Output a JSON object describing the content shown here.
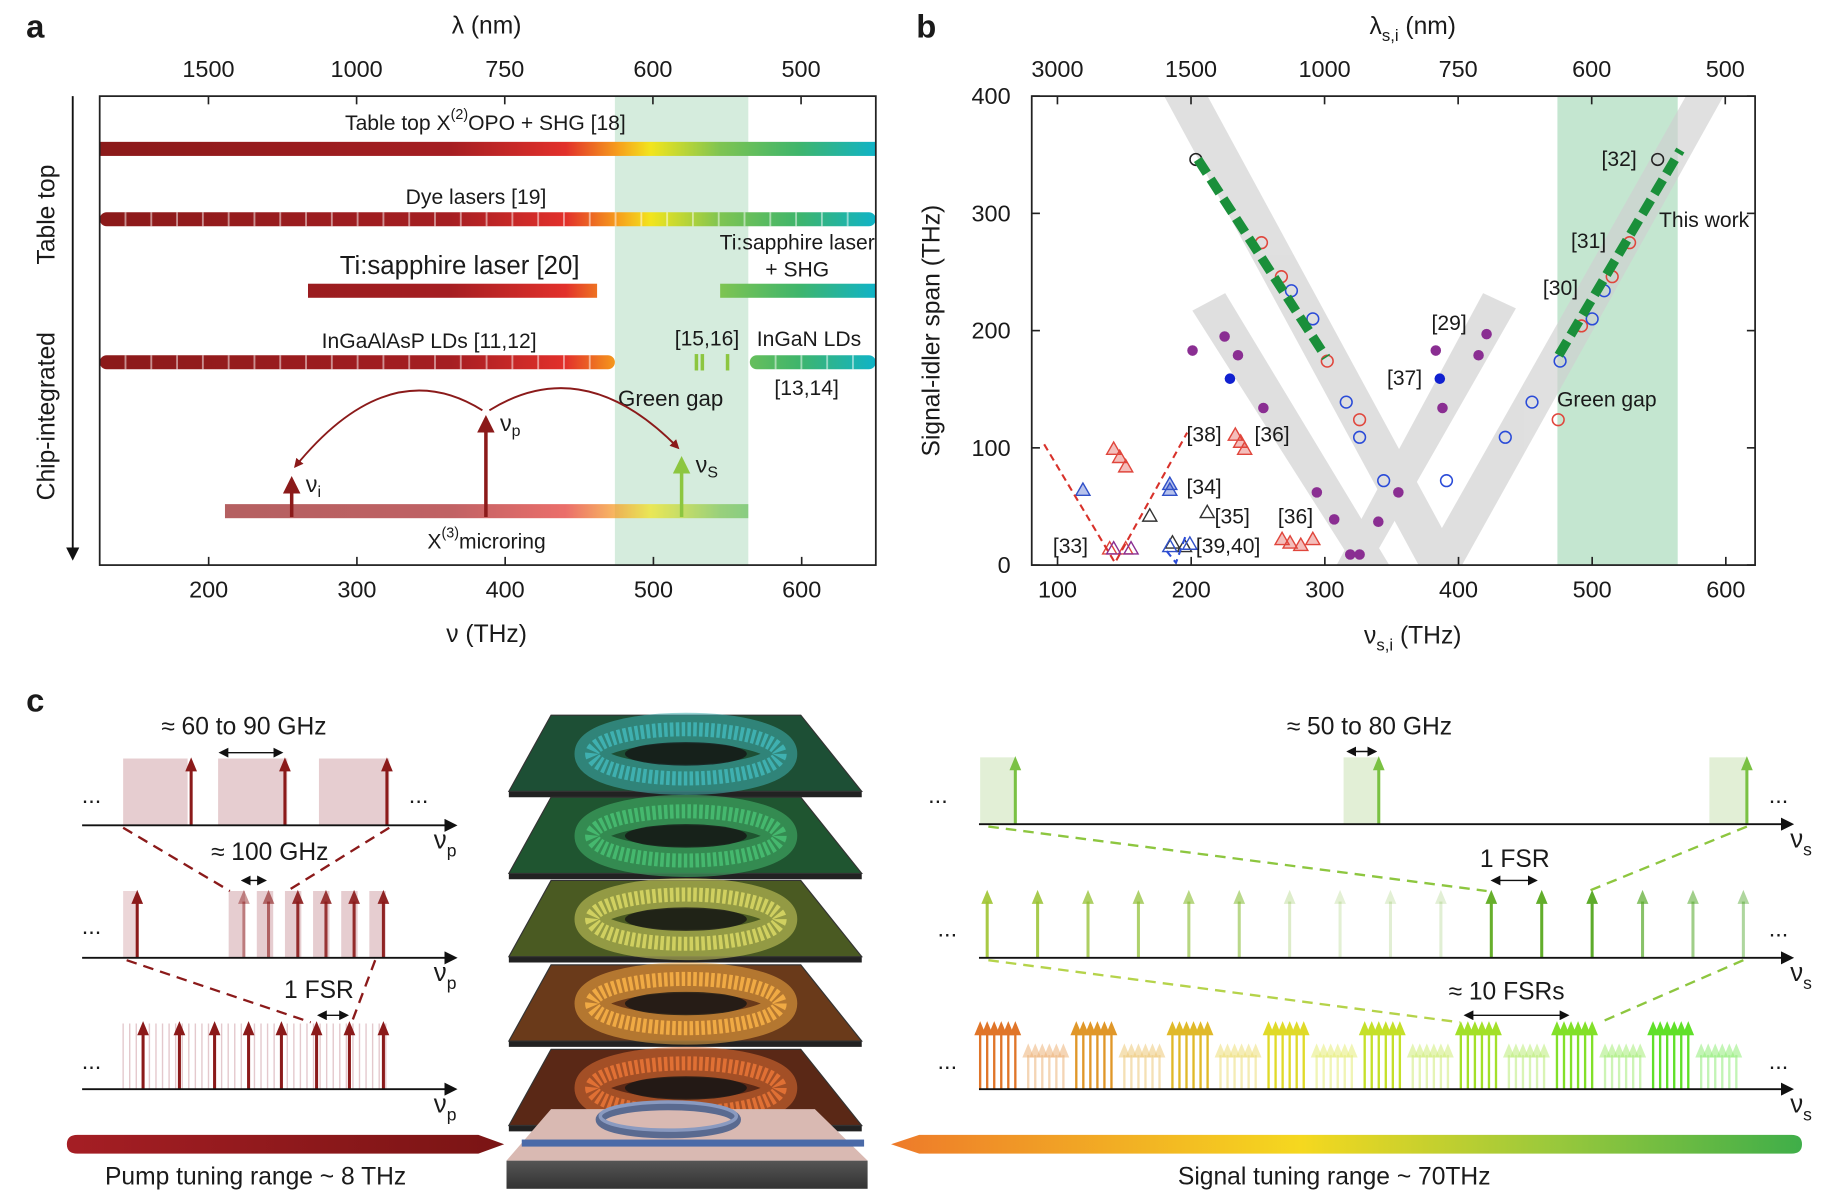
{
  "panel_labels": [
    "a",
    "b",
    "c"
  ],
  "chart_data": [
    {
      "type": "range",
      "top_axis_label": "λ (nm)",
      "xlabel": "ν (THz)",
      "xlim": [
        126.5,
        650
      ],
      "xticks": [
        200,
        300,
        400,
        500,
        600
      ],
      "top_xticks": [
        1500,
        1000,
        750,
        600,
        500
      ],
      "side_labels": [
        "Table top",
        "Chip-integrated"
      ],
      "band": {
        "range": [
          474,
          564
        ],
        "label": "Green gap",
        "color": "#d5ecdd"
      },
      "bars": [
        {
          "range": [
            126.5,
            650
          ],
          "style": "solid",
          "lines": [
            [
              {
                "t": "Table top X"
              },
              {
                "t": "(2)",
                "sup": true
              },
              {
                "t": "OPO + SHG [18]"
              }
            ]
          ]
        },
        {
          "range": [
            126.5,
            650
          ],
          "style": "segmented",
          "lines": [
            [
              {
                "t": "Dye lasers [19]"
              }
            ]
          ]
        },
        {
          "range": [
            267,
            462
          ],
          "style": "solid",
          "lines": [
            [
              {
                "t": "Ti:sapphire laser [20]"
              }
            ]
          ]
        },
        {
          "range": [
            545,
            650
          ],
          "style": "solid",
          "lines": [
            [
              {
                "t": "Ti:sapphire laser"
              }
            ],
            [
              {
                "t": "+ SHG"
              }
            ]
          ]
        },
        {
          "range": [
            126.5,
            474
          ],
          "style": "segmented",
          "lines": [
            [
              {
                "t": "InGaAlAsP LDs [11,12]"
              }
            ]
          ]
        },
        {
          "range": [
            565,
            650
          ],
          "style": "segmented",
          "lines": [
            [
              {
                "t": "InGaN LDs"
              }
            ],
            [
              {
                "t": "[13,14]"
              }
            ]
          ],
          "marks": [
            529,
            533,
            550
          ],
          "marks_label": "[15,16]"
        },
        {
          "range": [
            211,
            564
          ],
          "style": "faded",
          "lines": [
            [
              {
                "t": "X"
              },
              {
                "t": "(3)",
                "sup": true
              },
              {
                "t": "microring"
              }
            ]
          ]
        }
      ],
      "pump_lines": [
        {
          "value": 256,
          "label": [
            {
              "t": "ν"
            },
            {
              "t": "i",
              "sub": true
            }
          ]
        },
        {
          "value": 387,
          "label": [
            {
              "t": "ν"
            },
            {
              "t": "p",
              "sub": true
            }
          ]
        },
        {
          "value": 519,
          "label": [
            {
              "t": "ν"
            },
            {
              "t": "S",
              "sub": true
            }
          ]
        }
      ]
    },
    {
      "type": "scatter",
      "xlabel": [
        {
          "t": "ν"
        },
        {
          "t": "s,i",
          "sub": true
        },
        {
          "t": " (THz)"
        }
      ],
      "top_axis_label": [
        {
          "t": "λ"
        },
        {
          "t": "s,i",
          "sub": true
        },
        {
          "t": " (nm)"
        }
      ],
      "ylabel": "Signal-idler span (THz)",
      "xlim": [
        80.7,
        621.9
      ],
      "ylim": [
        0,
        400
      ],
      "xticks": [
        100,
        200,
        300,
        400,
        500,
        600
      ],
      "yticks": [
        0,
        100,
        200,
        300,
        400
      ],
      "top_xticks": [
        3000,
        1500,
        1000,
        750,
        600,
        500
      ],
      "band": {
        "range": [
          474,
          564
        ],
        "color": "#c4e6d0"
      },
      "series": [
        {
          "style": "circle-open",
          "color": "#222222",
          "x": [
            203.5,
            549
          ],
          "y": [
            346,
            346
          ]
        },
        {
          "style": "circle-open",
          "color": "#e0463c",
          "x": [
            252.6,
            267.5,
            301.8,
            326,
            474.6,
            492,
            515,
            528
          ],
          "y": [
            275,
            246,
            174,
            124,
            124,
            204,
            246,
            275
          ]
        },
        {
          "style": "circle-open",
          "color": "#2a4bd8",
          "x": [
            275,
            291,
            316,
            326,
            344,
            391,
            435,
            455,
            476,
            500,
            509
          ],
          "y": [
            234,
            210,
            139,
            109,
            72,
            72,
            109,
            139,
            174,
            210,
            234
          ]
        },
        {
          "style": "circle",
          "color": "#8a2e92",
          "x": [
            201,
            225,
            235,
            254,
            294,
            307,
            319,
            326,
            340,
            355,
            383,
            388,
            415,
            421
          ],
          "y": [
            183,
            195,
            179,
            134,
            62,
            39,
            9,
            9,
            37,
            62,
            183,
            134,
            179,
            197
          ]
        },
        {
          "style": "circle",
          "color": "#1020d0",
          "x": [
            229,
            386
          ],
          "y": [
            159,
            159
          ]
        },
        {
          "style": "triangle-hatched",
          "color": "#e0463c",
          "x": [
            142,
            146.5,
            151,
            233,
            237,
            240,
            268,
            274,
            282,
            291
          ],
          "y": [
            99,
            92,
            84,
            111,
            105,
            99,
            22,
            19,
            17,
            22
          ]
        },
        {
          "style": "triangle-open",
          "color": "#e0463c",
          "x": [
            139,
            151
          ],
          "y": [
            14,
            14
          ]
        },
        {
          "style": "triangle-hatched",
          "color": "#3050c8",
          "x": [
            119,
            184,
            184
          ],
          "y": [
            64,
            69,
            64
          ]
        },
        {
          "style": "triangle-open",
          "color": "#333333",
          "x": [
            169,
            212,
            186,
            195
          ],
          "y": [
            42,
            45,
            19,
            16
          ]
        },
        {
          "style": "triangle-open",
          "color": "#8a2e92",
          "x": [
            142,
            155
          ],
          "y": [
            14,
            14
          ]
        },
        {
          "style": "triangle-open",
          "color": "#3050c8",
          "x": [
            184,
            199
          ],
          "y": [
            16,
            18
          ]
        },
        {
          "style": "dashed-thick",
          "color": "#1a8f3a",
          "x": [
            205,
            301
          ],
          "y": [
            346,
            177
          ]
        },
        {
          "style": "dashed-thick",
          "color": "#1a8f3a",
          "x": [
            475,
            566
          ],
          "y": [
            179,
            354
          ]
        },
        {
          "style": "dashed",
          "color": "#d8322b",
          "x": [
            90,
            143,
            197
          ],
          "y": [
            103,
            2,
            113
          ]
        },
        {
          "style": "dashed",
          "color": "#2a4bd8",
          "x": [
            181.6,
            188.6,
            196.5
          ],
          "y": [
            12,
            2,
            27
          ]
        }
      ],
      "annotations": [
        {
          "text": "[32]",
          "color": "#222222"
        },
        {
          "text": "This work",
          "color": "#1a9a4a"
        },
        {
          "text": "[31]",
          "color": "#d8322b"
        },
        {
          "text": "[30]",
          "color": "#1b2fbf"
        },
        {
          "text": "[29]",
          "color": "#8e2c8e"
        },
        {
          "text": "[37]",
          "color": "#1b2fbf"
        },
        {
          "text": "[38]",
          "color": "#d8322b"
        },
        {
          "text": "[36]",
          "color": "#d8322b"
        },
        {
          "text": "[34]",
          "color": "#1b2fbf"
        },
        {
          "text": "[35]",
          "color": "#222222"
        },
        {
          "text": "[36]",
          "color": "#d8322b"
        },
        {
          "text": "[33]",
          "color": "#8e2c8e"
        },
        {
          "text": "[39,40]",
          "color": "#1b2fbf"
        },
        {
          "text": "Green gap",
          "color": "#222222"
        }
      ]
    }
  ],
  "panel_c": {
    "pump": {
      "rows": [
        {
          "spacing": "≈ 60 to 90 GHz",
          "axis": [
            {
              "t": "ν"
            },
            {
              "t": "p",
              "sub": true
            }
          ],
          "dots": [
            "...",
            "..."
          ]
        },
        {
          "spacing": "≈ 100 GHz",
          "axis": [
            {
              "t": "ν"
            },
            {
              "t": "p",
              "sub": true
            }
          ],
          "dots": [
            "..."
          ]
        },
        {
          "spacing": "1 FSR",
          "axis": [
            {
              "t": "ν"
            },
            {
              "t": "p",
              "sub": true
            }
          ],
          "dots": [
            "..."
          ]
        }
      ],
      "range": "Pump tuning range ~ 8 THz"
    },
    "signal": {
      "rows": [
        {
          "spacing": "≈ 50 to 80 GHz",
          "axis": [
            {
              "t": "ν"
            },
            {
              "t": "s",
              "sub": true
            }
          ],
          "dots": [
            "...",
            "..."
          ]
        },
        {
          "spacing": "1 FSR",
          "axis": [
            {
              "t": "ν"
            },
            {
              "t": "s",
              "sub": true
            }
          ],
          "dots": [
            "...",
            "..."
          ]
        },
        {
          "spacing": "≈ 10 FSRs",
          "axis": [
            {
              "t": "ν"
            },
            {
              "t": "s",
              "sub": true
            }
          ],
          "dots": [
            "...",
            "..."
          ]
        }
      ],
      "range": "Signal tuning range ~ 70THz"
    }
  }
}
